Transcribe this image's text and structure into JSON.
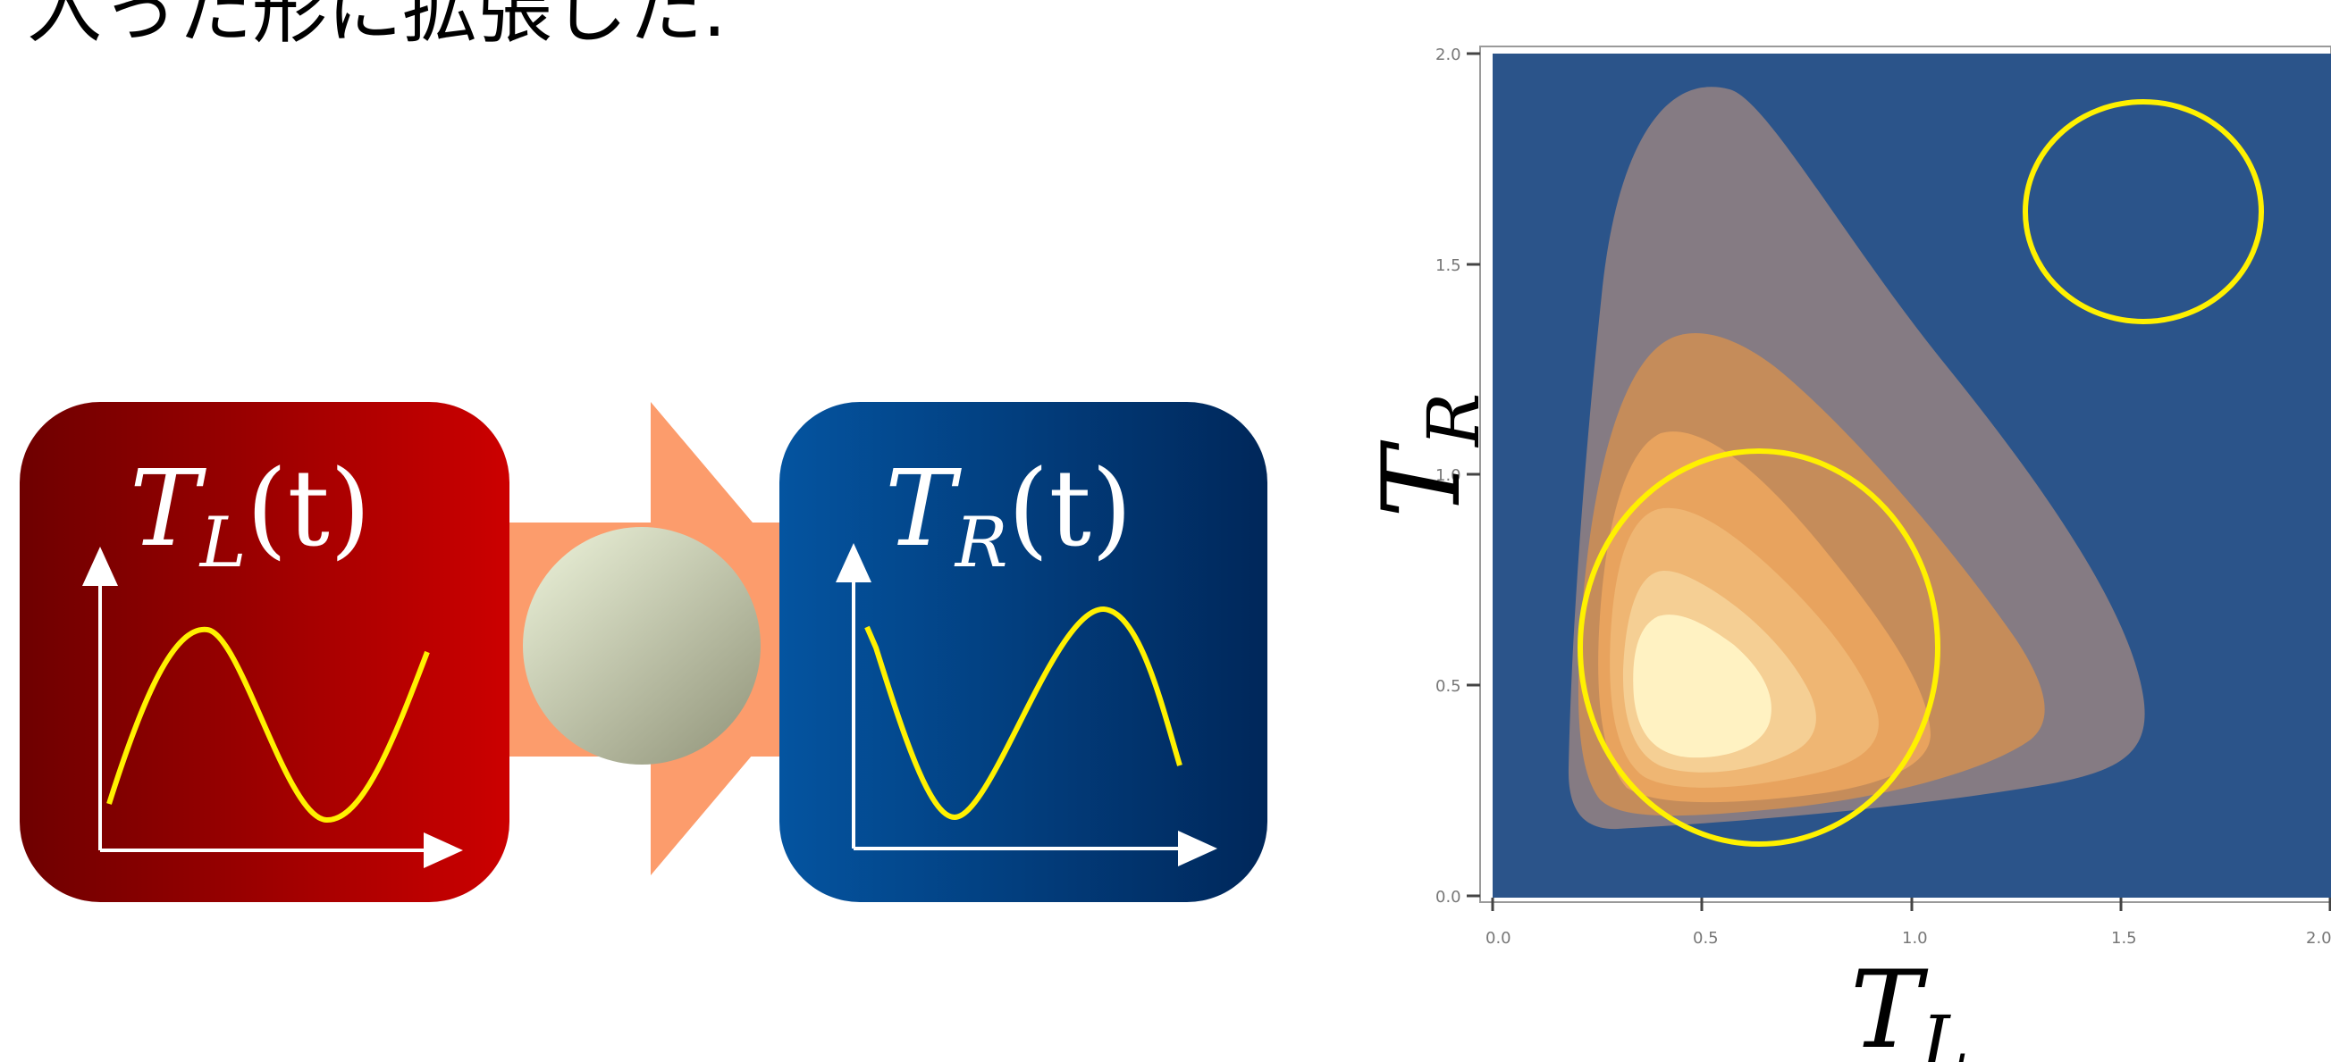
{
  "caption": "入った形に拡張した.",
  "left_box": {
    "var": "T",
    "sub": "L",
    "arg": "(t)"
  },
  "right_box": {
    "var": "T",
    "sub": "R",
    "arg": "(t)"
  },
  "plot": {
    "ylabel_var": "T",
    "ylabel_sub": "R",
    "xlabel_var": "T",
    "xlabel_sub": "L",
    "x_ticks": [
      "0.0",
      "0.5",
      "1.0",
      "1.5",
      "2.0"
    ],
    "y_ticks": [
      "0.0",
      "0.5",
      "1.0",
      "1.5",
      "2.0"
    ]
  },
  "colors": {
    "left_box_dark": "#6e0000",
    "left_box_light": "#cc0000",
    "right_box_light": "#0454a0",
    "right_box_dark": "#00275a",
    "arrow": "#fc9c6c",
    "sphere_light": "#e2e8cf",
    "sphere_dark": "#979a80",
    "curve": "#fff100",
    "plot_bg": "#2b548a",
    "contour_gray": "#857b83",
    "contour_1": "#c58c5a",
    "contour_2": "#e8a35e",
    "contour_3": "#efb673",
    "contour_4": "#f5cf94",
    "contour_5": "#fff2c2"
  }
}
